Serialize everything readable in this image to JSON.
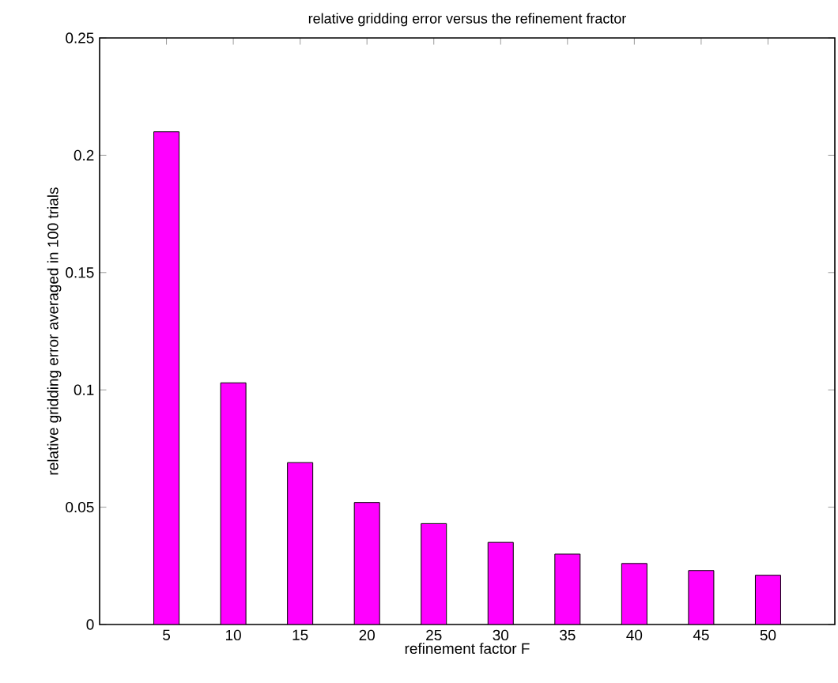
{
  "chart_data": {
    "type": "bar",
    "title": "relative gridding error versus the refinement fractor",
    "xlabel": "refinement factor F",
    "ylabel": "relative gridding error averaged in 100 trials",
    "x": [
      5,
      10,
      15,
      20,
      25,
      30,
      35,
      40,
      45,
      50
    ],
    "values": [
      0.21,
      0.103,
      0.069,
      0.052,
      0.043,
      0.035,
      0.03,
      0.026,
      0.023,
      0.021
    ],
    "color": "#ff00ff",
    "xlim": [
      0,
      55
    ],
    "xticks": [
      5,
      10,
      15,
      20,
      25,
      30,
      35,
      40,
      45,
      50
    ],
    "ylim": [
      0,
      0.25
    ],
    "yticks": [
      0,
      0.05,
      0.1,
      0.15,
      0.2,
      0.25
    ]
  }
}
